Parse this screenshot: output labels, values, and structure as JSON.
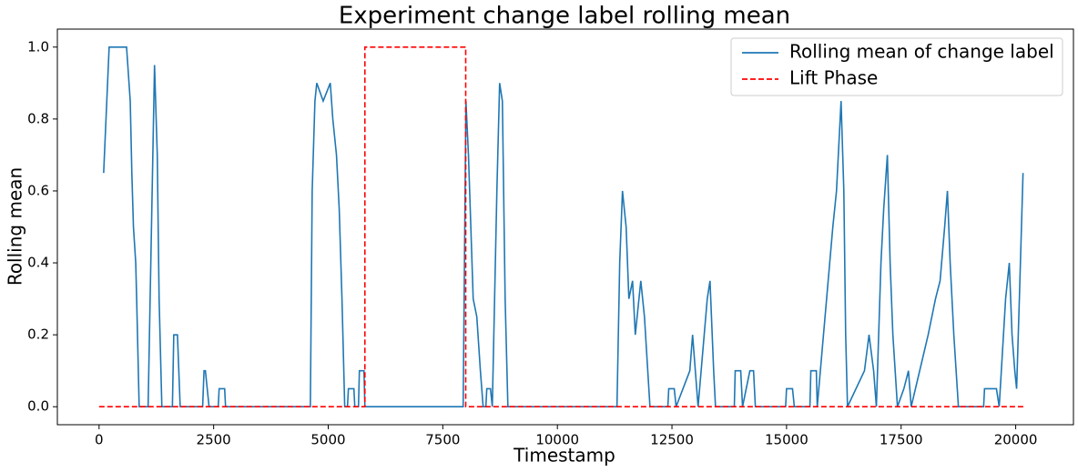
{
  "chart_data": {
    "type": "line",
    "title": "Experiment change label rolling mean",
    "x_label": "Timestamp",
    "y_label": "Rolling mean",
    "xlim": [
      -910,
      21260
    ],
    "ylim": [
      -0.05,
      1.05
    ],
    "xticks": [
      0,
      2500,
      5000,
      7500,
      10000,
      12500,
      15000,
      17500,
      20000
    ],
    "yticks": [
      {
        "value": 0,
        "label": "0.0"
      },
      0.2,
      0.4,
      0.6,
      0.8,
      {
        "value": 1,
        "label": "1.0"
      }
    ],
    "legend": "upper right",
    "series": [
      {
        "name": "Rolling mean of change label",
        "color": "#1f77b4",
        "style": "solid",
        "x": [
          100,
          220,
          600,
          680,
          715,
          750,
          800,
          820,
          875,
          1070,
          1210,
          1270,
          1310,
          1370,
          1600,
          1630,
          1710,
          1770,
          2260,
          2290,
          2320,
          2400,
          2600,
          2620,
          2740,
          2760,
          4610,
          4650,
          4710,
          4750,
          4890,
          5045,
          5100,
          5180,
          5240,
          5300,
          5360,
          5420,
          5440,
          5560,
          5580,
          5660,
          5680,
          5780,
          5800,
          7944,
          8004,
          8060,
          8163,
          8242,
          8320,
          8380,
          8440,
          8460,
          8540,
          8580,
          8680,
          8740,
          8800,
          8860,
          8920,
          11300,
          11360,
          11420,
          11500,
          11560,
          11640,
          11700,
          11820,
          11900,
          12020,
          12410,
          12430,
          12550,
          12590,
          12890,
          12950,
          13010,
          13070,
          13270,
          13330,
          13410,
          13450,
          13860,
          13880,
          14000,
          14040,
          14120,
          14200,
          14280,
          14320,
          14980,
          15000,
          15130,
          15170,
          15510,
          15530,
          15650,
          15670,
          16010,
          16090,
          16190,
          16250,
          16290,
          16330,
          16700,
          16800,
          16900,
          16960,
          17060,
          17120,
          17200,
          17260,
          17320,
          17420,
          17560,
          17660,
          17720,
          18090,
          18250,
          18350,
          18450,
          18510,
          18570,
          18650,
          18750,
          19300,
          19320,
          19580,
          19640,
          19780,
          19860,
          19920,
          19980,
          20020,
          20080,
          20160
        ],
        "values": [
          0.65,
          1,
          1,
          0.85,
          0.65,
          0.5,
          0.4,
          0.3,
          0,
          0,
          0.95,
          0.7,
          0.3,
          0,
          0,
          0.2,
          0.2,
          0,
          0,
          0.1,
          0.1,
          0,
          0,
          0.05,
          0.05,
          0,
          0,
          0.6,
          0.85,
          0.9,
          0.85,
          0.9,
          0.8,
          0.7,
          0.55,
          0.3,
          0,
          0,
          0.05,
          0.05,
          0,
          0,
          0.1,
          0.1,
          0,
          0,
          0.85,
          0.7,
          0.3,
          0.25,
          0.1,
          0,
          0,
          0.05,
          0.05,
          0,
          0.6,
          0.9,
          0.85,
          0.3,
          0,
          0,
          0.4,
          0.6,
          0.5,
          0.3,
          0.35,
          0.2,
          0.35,
          0.25,
          0,
          0,
          0.05,
          0.05,
          0,
          0.1,
          0.2,
          0.1,
          0,
          0.3,
          0.35,
          0.1,
          0,
          0,
          0.1,
          0.1,
          0,
          0.05,
          0.1,
          0.1,
          0,
          0,
          0.05,
          0.05,
          0,
          0,
          0.1,
          0.1,
          0,
          0.5,
          0.6,
          0.85,
          0.6,
          0.2,
          0,
          0.1,
          0.2,
          0.1,
          0,
          0.4,
          0.55,
          0.7,
          0.4,
          0.2,
          0,
          0.05,
          0.1,
          0,
          0.2,
          0.3,
          0.35,
          0.5,
          0.6,
          0.4,
          0.2,
          0,
          0,
          0.05,
          0.05,
          0,
          0.3,
          0.4,
          0.2,
          0.1,
          0.05,
          0.3,
          0.65
        ]
      },
      {
        "name": "Lift Phase",
        "color": "#ff0000",
        "style": "dashed",
        "x": [
          0,
          5800,
          5800,
          8000,
          8000,
          20200
        ],
        "values": [
          0,
          0,
          1,
          1,
          0,
          0
        ]
      }
    ]
  }
}
